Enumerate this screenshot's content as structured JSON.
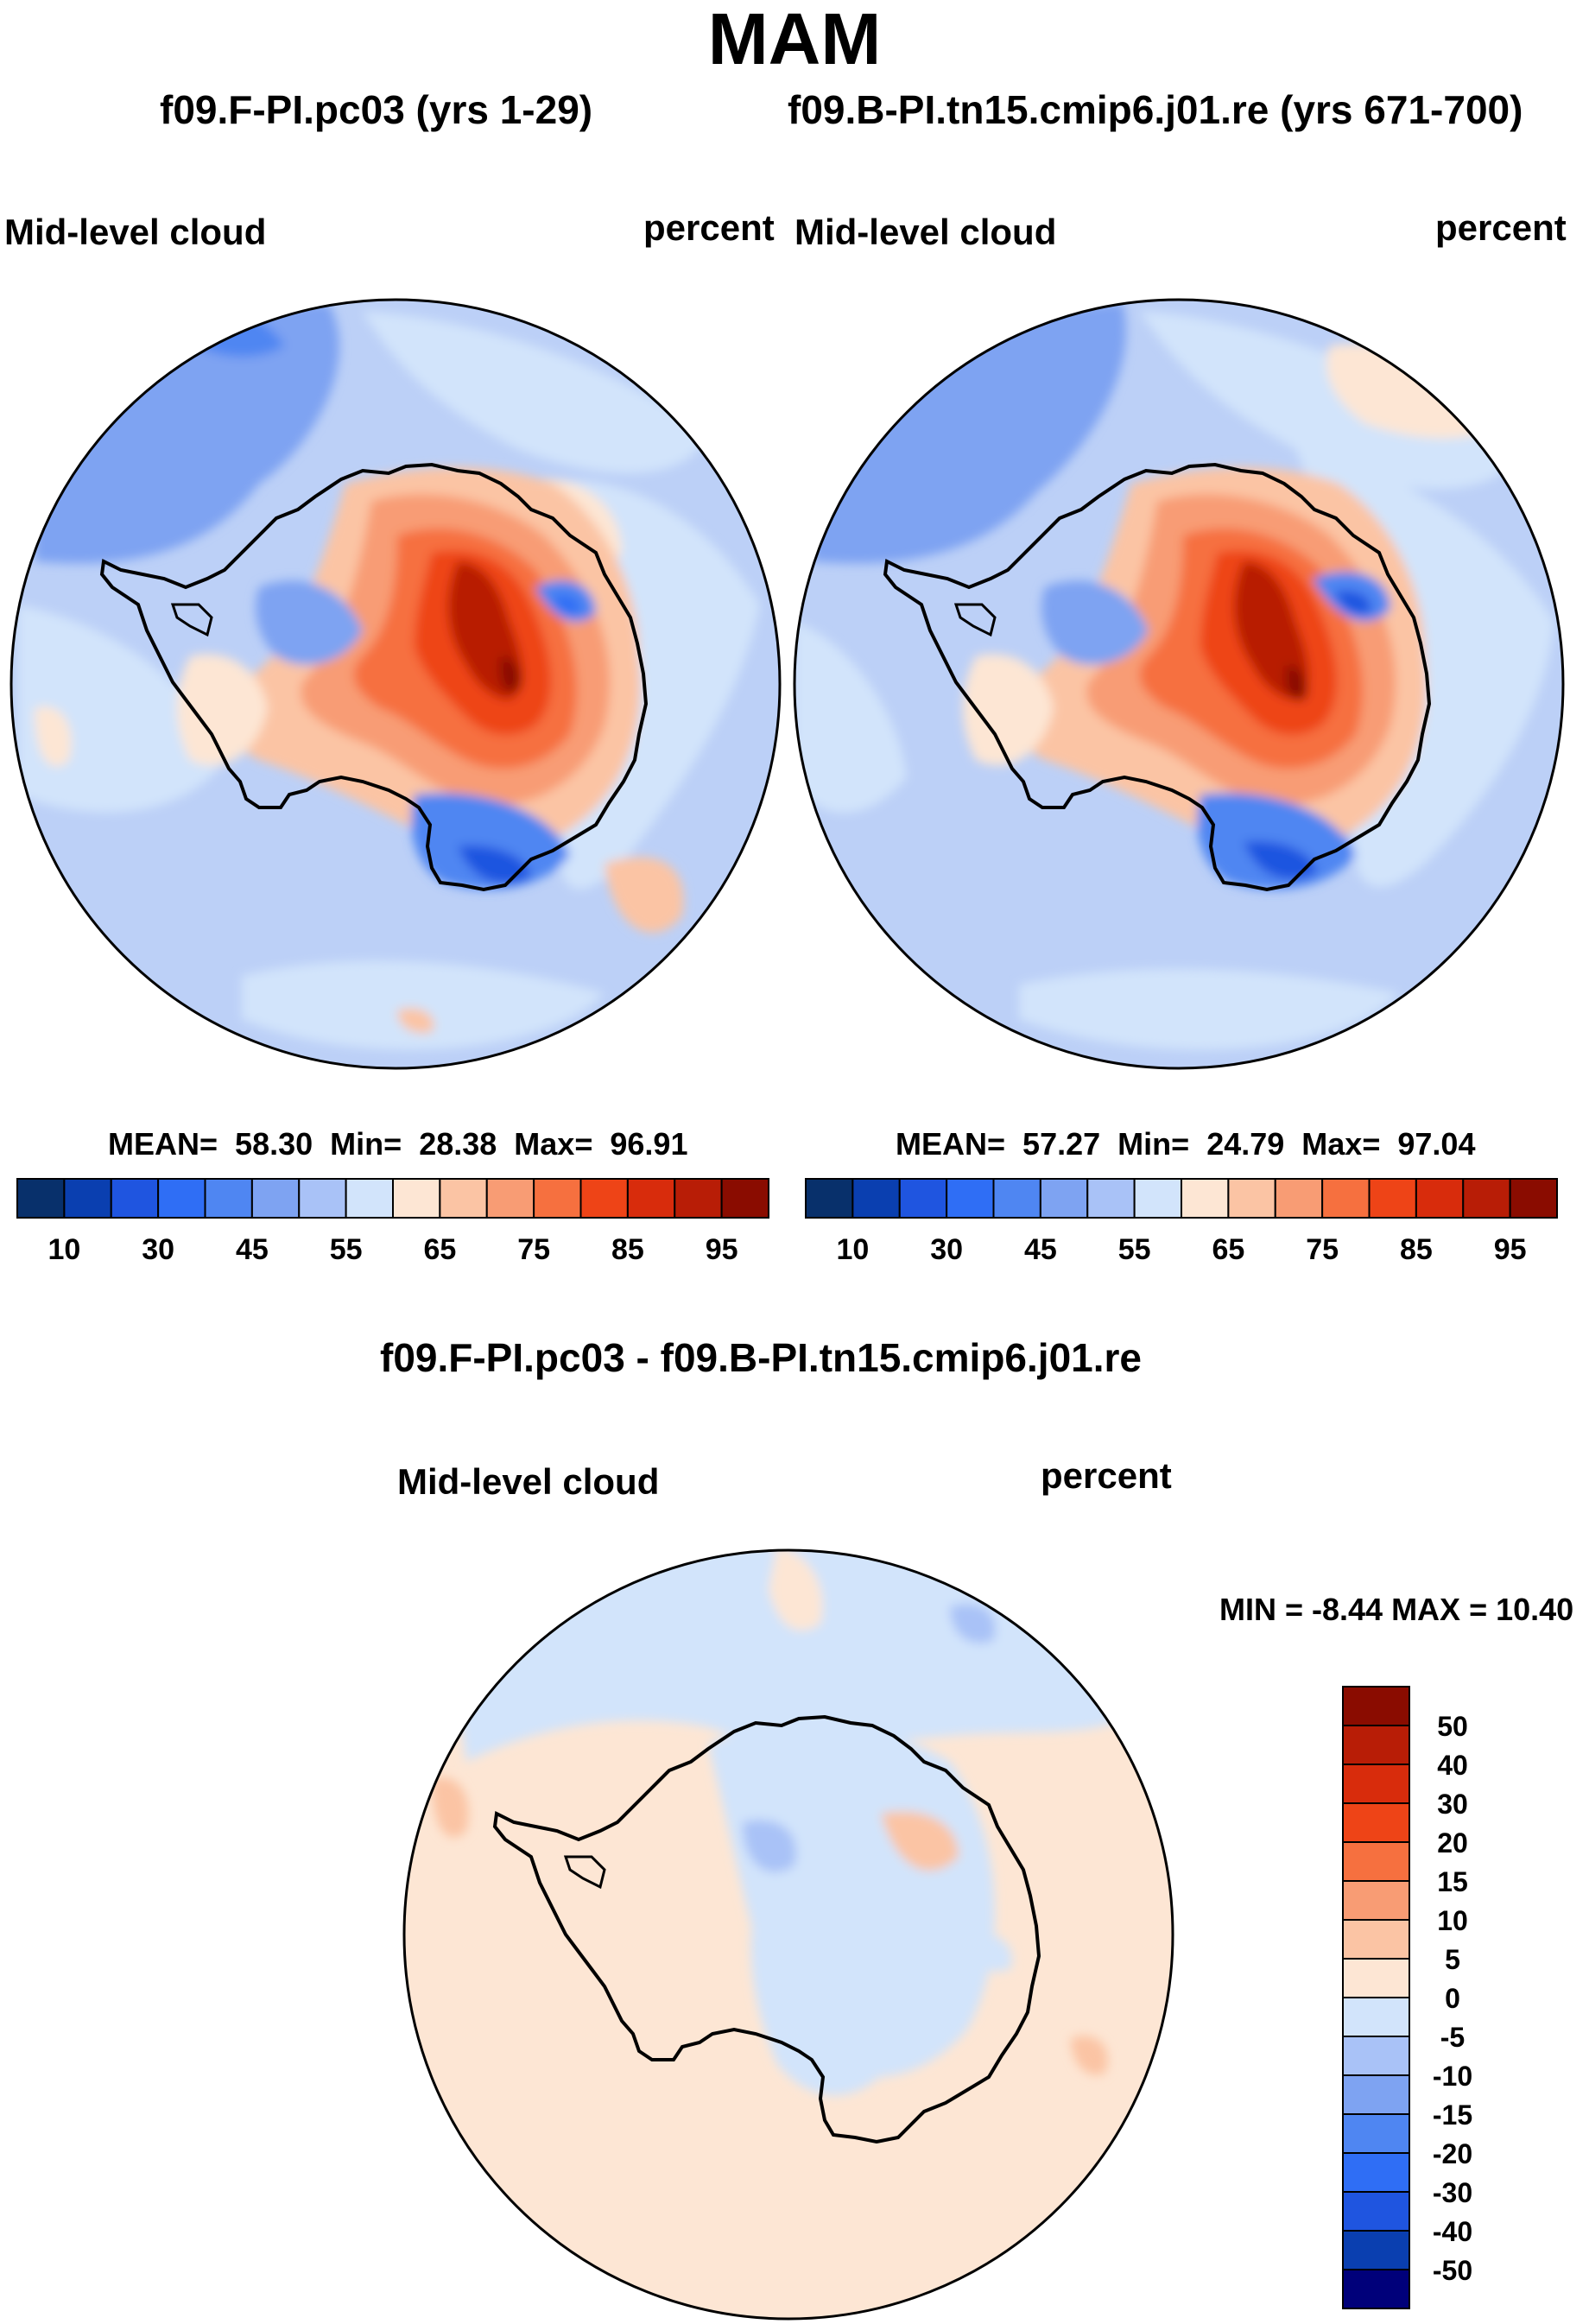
{
  "season_title": "MAM",
  "panels": [
    {
      "case_title": "f09.F-PI.pc03 (yrs 1-29)",
      "variable": "Mid-level cloud",
      "units": "percent",
      "stats": {
        "mean_label": "MEAN=",
        "mean": "58.30",
        "min_label": "Min=",
        "min": "28.38",
        "max_label": "Max=",
        "max": "96.91"
      },
      "colorbar_ticks": [
        "10",
        "30",
        "45",
        "55",
        "65",
        "75",
        "85",
        "95"
      ]
    },
    {
      "case_title": "f09.B-PI.tn15.cmip6.j01.re (yrs 671-700)",
      "variable": "Mid-level cloud",
      "units": "percent",
      "stats": {
        "mean_label": "MEAN=",
        "mean": "57.27",
        "min_label": "Min=",
        "min": "24.79",
        "max_label": "Max=",
        "max": "97.04"
      },
      "colorbar_ticks": [
        "10",
        "30",
        "45",
        "55",
        "65",
        "75",
        "85",
        "95"
      ]
    }
  ],
  "diff_panel": {
    "title": "f09.F-PI.pc03 - f09.B-PI.tn15.cmip6.j01.re",
    "variable": "Mid-level cloud",
    "units": "percent",
    "stats_text": "MIN =  -8.44 MAX =  10.40",
    "colorbar_ticks": [
      "50",
      "40",
      "30",
      "20",
      "15",
      "10",
      "5",
      "0",
      "-5",
      "-10",
      "-15",
      "-20",
      "-30",
      "-40",
      "-50"
    ]
  },
  "colors": {
    "abs_scale": [
      "#08306b",
      "#0a3fb0",
      "#1f55e0",
      "#2f6ef5",
      "#4f86f2",
      "#7ea3f2",
      "#a9c2f7",
      "#d2e4fb",
      "#fde6d4",
      "#fbc4a4",
      "#f89c74",
      "#f6703f",
      "#ee4417",
      "#d82c0c",
      "#b81d06",
      "#8a0c00"
    ],
    "diff_scale": [
      "#00007a",
      "#0a3fb0",
      "#1f55e0",
      "#2f6ef5",
      "#4f86f2",
      "#7ea3f2",
      "#a9c2f7",
      "#d2e4fb",
      "#fde6d4",
      "#fbc4a4",
      "#f89c74",
      "#f6703f",
      "#ee4417",
      "#d82c0c",
      "#b81d06",
      "#8a0c00"
    ]
  }
}
